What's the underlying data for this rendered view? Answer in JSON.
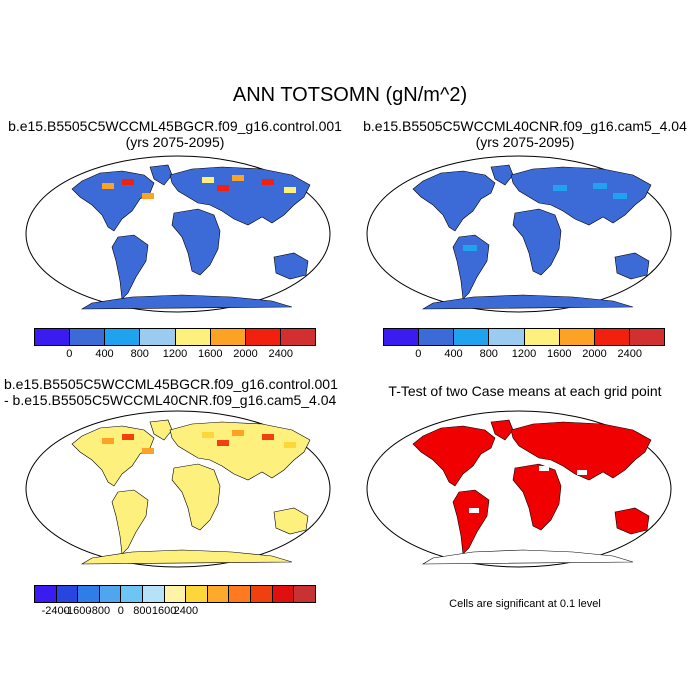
{
  "main_title": "ANN TOTSOMN (gN/m^2)",
  "panels": {
    "p1": {
      "line1": "b.e15.B5505C5WCCML45BGCR.f09_g16.control.001",
      "line2": "(yrs 2075-2095)"
    },
    "p2": {
      "line1": "b.e15.B5505C5WCCML40CNR.f09_g16.cam5_4.04",
      "line2": "(yrs 2075-2095)"
    },
    "p3": {
      "line1": "b.e15.B5505C5WCCML45BGCR.f09_g16.control.001",
      "line2": "- b.e15.B5505C5WCCML40CNR.f09_g16.cam5_4.04"
    },
    "p4": {
      "line1": "T-Test of two Case means at each grid point"
    }
  },
  "colorbar_abs": {
    "colors": [
      "#3a1cf0",
      "#3c6ad6",
      "#1fa3ee",
      "#9ccbf0",
      "#fdf07c",
      "#fca326",
      "#f2200e",
      "#d23030"
    ],
    "labels": [
      "0",
      "400",
      "800",
      "1200",
      "1600",
      "2000",
      "2400"
    ]
  },
  "colorbar_diff": {
    "colors": [
      "#3a1cf0",
      "#2745e0",
      "#2f7de6",
      "#4fa6ef",
      "#6cc5f2",
      "#b6e2f7",
      "#fff3a8",
      "#fdd63a",
      "#fdaa2c",
      "#fd7a1e",
      "#f04010",
      "#e01010",
      "#c83232"
    ],
    "labels": [
      "-2400",
      "-1600",
      "-800",
      "0",
      "800",
      "1600",
      "2400"
    ]
  },
  "significance_note": "Cells are significant at 0.1 level",
  "map_colors": {
    "p1_base": "#3c6ad6",
    "p2_base": "#3c6ad6",
    "p3_base": "#fdf07c",
    "p4_sig": "#f00000",
    "ocean": "#ffffff"
  }
}
